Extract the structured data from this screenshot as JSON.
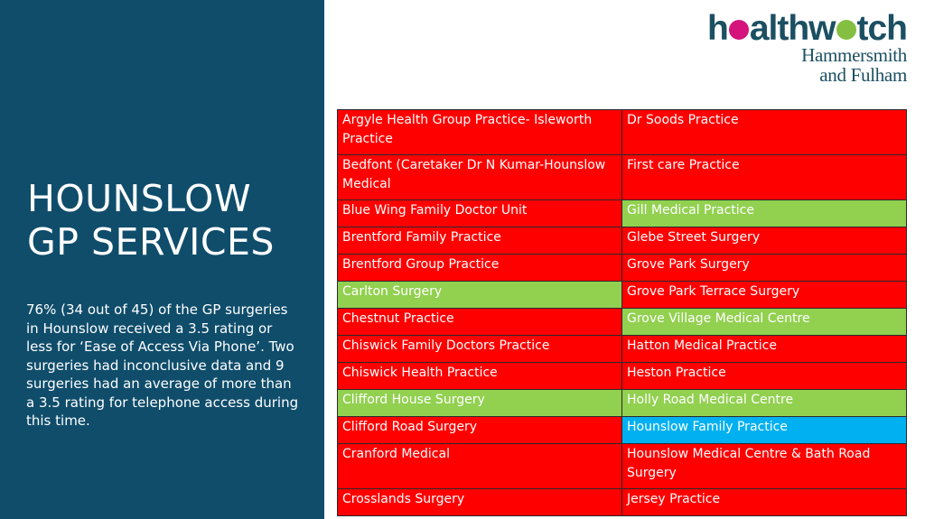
{
  "title": {
    "line1": "HOUNSLOW",
    "line2": "GP SERVICES"
  },
  "summary": "76% (34 out of 45) of the GP surgeries in Hounslow received a 3.5 rating or less for ‘Ease of Access Via Phone’. Two surgeries had inconclusive data and 9 surgeries had an average of more than a 3.5 rating for telephone access during this time.",
  "logo": {
    "word_start": "h",
    "word_mid": "althw",
    "word_end": "tch",
    "line1": "Hammersmith",
    "line2": "and Fulham"
  },
  "colors": {
    "panel": "#0f4d6b",
    "red": "#ff0000",
    "green": "#92d050",
    "blue": "#00b0f0",
    "logo_text": "#1b4f62",
    "logo_pink": "#d5137c",
    "logo_green": "#84bf41"
  },
  "table": {
    "rows": [
      {
        "left": "Argyle Health Group Practice- Isleworth Practice",
        "left_status": "red",
        "right": "Dr Soods Practice",
        "right_status": "red"
      },
      {
        "left": "Bedfont (Caretaker Dr N Kumar-Hounslow Medical",
        "left_status": "red",
        "right": "First care Practice",
        "right_status": "red"
      },
      {
        "left": "Blue Wing Family Doctor Unit",
        "left_status": "red",
        "right": "Gill Medical Practice",
        "right_status": "green"
      },
      {
        "left": "Brentford Family Practice",
        "left_status": "red",
        "right": "Glebe Street Surgery",
        "right_status": "red"
      },
      {
        "left": "Brentford Group Practice",
        "left_status": "red",
        "right": "Grove Park Surgery",
        "right_status": "red"
      },
      {
        "left": "Carlton Surgery",
        "left_status": "green",
        "right": "Grove Park Terrace Surgery",
        "right_status": "red"
      },
      {
        "left": "Chestnut Practice",
        "left_status": "red",
        "right": "Grove Village Medical Centre",
        "right_status": "green"
      },
      {
        "left": "Chiswick Family Doctors Practice",
        "left_status": "red",
        "right": "Hatton Medical Practice",
        "right_status": "red"
      },
      {
        "left": "Chiswick Health Practice",
        "left_status": "red",
        "right": "Heston Practice",
        "right_status": "red"
      },
      {
        "left": "Clifford House Surgery",
        "left_status": "green",
        "right": "Holly Road Medical Centre",
        "right_status": "green"
      },
      {
        "left": "Clifford Road Surgery",
        "left_status": "red",
        "right": "Hounslow Family Practice",
        "right_status": "blue"
      },
      {
        "left": "Cranford Medical",
        "left_status": "red",
        "right": "Hounslow Medical Centre & Bath Road Surgery",
        "right_status": "red"
      },
      {
        "left": "Crosslands Surgery",
        "left_status": "red",
        "right": "Jersey Practice",
        "right_status": "red"
      }
    ]
  }
}
